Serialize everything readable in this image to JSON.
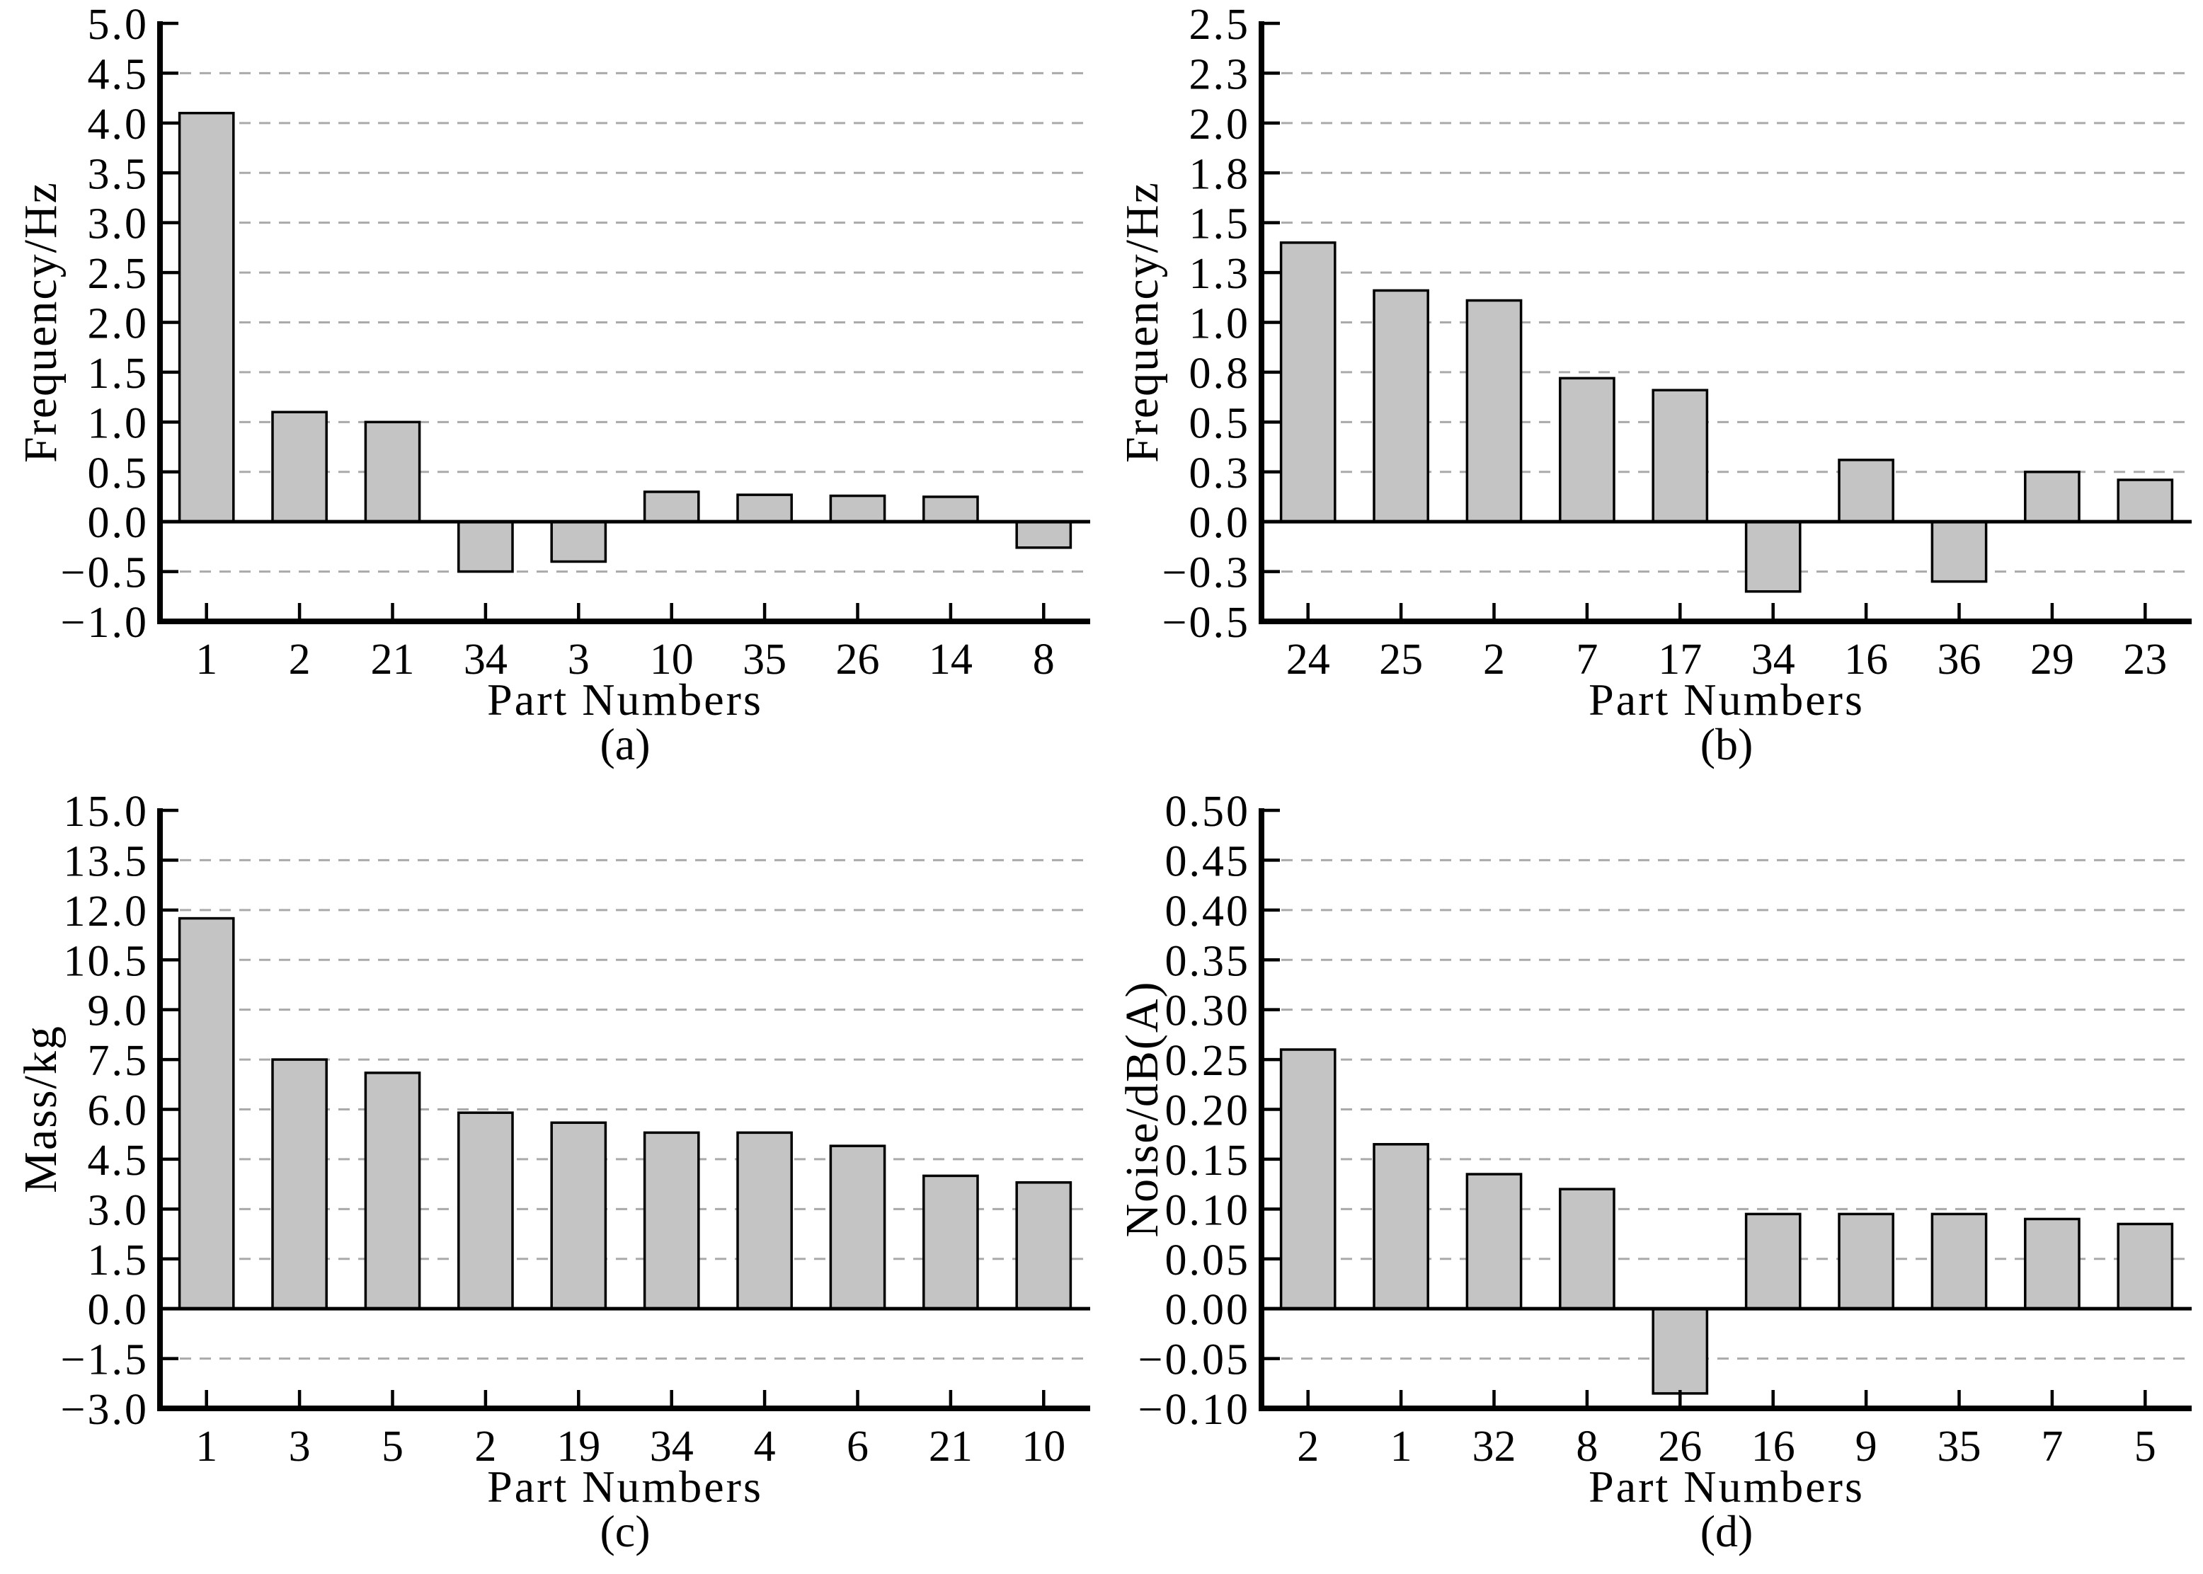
{
  "figure": {
    "xlabel_shared": "Part Numbers",
    "colors": {
      "background": "#ffffff",
      "bar_fill": "#c4c4c4",
      "bar_edge": "#000000",
      "grid": "#aaaaaa",
      "axis": "#000000",
      "text": "#000000"
    }
  },
  "chart_data": [
    {
      "panel": "(a)",
      "type": "bar",
      "xlabel": "Part Numbers",
      "ylabel": "Frequency/Hz",
      "categories": [
        "1",
        "2",
        "21",
        "34",
        "3",
        "10",
        "35",
        "26",
        "14",
        "8"
      ],
      "values": [
        4.1,
        1.1,
        1.0,
        -0.5,
        -0.4,
        0.3,
        0.27,
        0.26,
        0.25,
        -0.26
      ],
      "ylim": [
        -1.0,
        5.0
      ],
      "ytick_values": [
        5.0,
        4.5,
        4.0,
        3.5,
        3.0,
        2.5,
        2.0,
        1.5,
        1.0,
        0.5,
        0.0,
        -0.5,
        -1.0
      ],
      "ytick_labels": [
        "5.0",
        "4.5",
        "4.0",
        "3.5",
        "3.0",
        "2.5",
        "2.0",
        "1.5",
        "1.0",
        "0.5",
        "0.0",
        "−0.5",
        "−1.0"
      ],
      "grid": "horizontal-dashed",
      "legend": null
    },
    {
      "panel": "(b)",
      "type": "bar",
      "xlabel": "Part Numbers",
      "ylabel": "Frequency/Hz",
      "categories": [
        "24",
        "25",
        "2",
        "7",
        "17",
        "34",
        "16",
        "36",
        "29",
        "23"
      ],
      "values": [
        1.4,
        1.16,
        1.11,
        0.72,
        0.66,
        -0.35,
        0.31,
        -0.3,
        0.25,
        0.21
      ],
      "ylim": [
        -0.5,
        2.5
      ],
      "ytick_values": [
        2.5,
        2.25,
        2.0,
        1.75,
        1.5,
        1.25,
        1.0,
        0.75,
        0.5,
        0.25,
        0.0,
        -0.25,
        -0.5
      ],
      "ytick_labels": [
        "2.5",
        "2.3",
        "2.0",
        "1.8",
        "1.5",
        "1.3",
        "1.0",
        "0.8",
        "0.5",
        "0.3",
        "0.0",
        "−0.3",
        "−0.5"
      ],
      "grid": "horizontal-dashed",
      "legend": null
    },
    {
      "panel": "(c)",
      "type": "bar",
      "xlabel": "Part Numbers",
      "ylabel": "Mass/kg",
      "categories": [
        "1",
        "3",
        "5",
        "2",
        "19",
        "34",
        "4",
        "6",
        "21",
        "10"
      ],
      "values": [
        11.75,
        7.5,
        7.1,
        5.9,
        5.6,
        5.3,
        5.3,
        4.9,
        4.0,
        3.8
      ],
      "ylim": [
        -3.0,
        15.0
      ],
      "ytick_values": [
        15.0,
        13.5,
        12.0,
        10.5,
        9.0,
        7.5,
        6.0,
        4.5,
        3.0,
        1.5,
        0.0,
        -1.5,
        -3.0
      ],
      "ytick_labels": [
        "15.0",
        "13.5",
        "12.0",
        "10.5",
        "9.0",
        "7.5",
        "6.0",
        "4.5",
        "3.0",
        "1.5",
        "0.0",
        "−1.5",
        "−3.0"
      ],
      "grid": "horizontal-dashed",
      "legend": null
    },
    {
      "panel": "(d)",
      "type": "bar",
      "xlabel": "Part Numbers",
      "ylabel": "Noise/dB(A)",
      "categories": [
        "2",
        "1",
        "32",
        "8",
        "26",
        "16",
        "9",
        "35",
        "7",
        "5"
      ],
      "values": [
        0.26,
        0.165,
        0.135,
        0.12,
        -0.085,
        0.095,
        0.095,
        0.095,
        0.09,
        0.085
      ],
      "ylim": [
        -0.1,
        0.5
      ],
      "ytick_values": [
        0.5,
        0.45,
        0.4,
        0.35,
        0.3,
        0.25,
        0.2,
        0.15,
        0.1,
        0.05,
        0.0,
        -0.05,
        -0.1
      ],
      "ytick_labels": [
        "0.50",
        "0.45",
        "0.40",
        "0.35",
        "0.30",
        "0.25",
        "0.20",
        "0.15",
        "0.10",
        "0.05",
        "0.00",
        "−0.05",
        "−0.10"
      ],
      "grid": "horizontal-dashed",
      "legend": null
    }
  ]
}
